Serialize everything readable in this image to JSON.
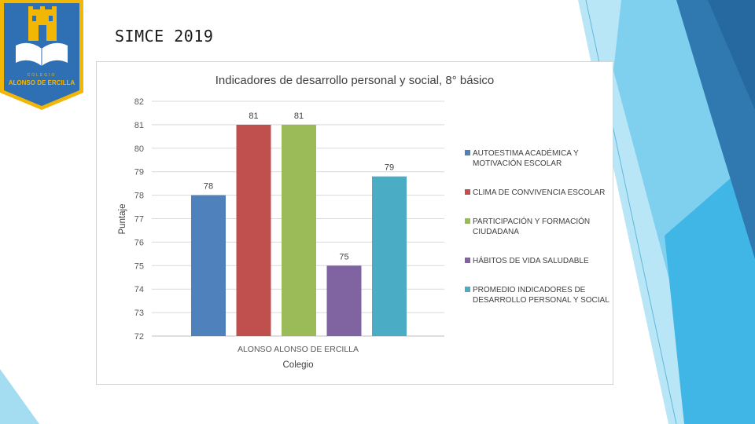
{
  "slide": {
    "title": "SIMCE 2019",
    "logo_text_top": "COLEGIO",
    "logo_text_bottom": "ALONSO DE ERCILLA"
  },
  "colors": {
    "logo_gold": "#f2b705",
    "deco_light": "#7dd3f0",
    "deco_dark": "#2a6fa8"
  },
  "chart_data": {
    "type": "bar",
    "title": "Indicadores de desarrollo personal y social, 8° básico",
    "xlabel": "Colegio",
    "ylabel": "Puntaje",
    "category": "ALONSO ALONSO DE ERCILLA",
    "ylim": [
      72,
      82
    ],
    "yticks": [
      72,
      73,
      74,
      75,
      76,
      77,
      78,
      79,
      80,
      81,
      82
    ],
    "grid": true,
    "legend_position": "right",
    "series": [
      {
        "name": "AUTOESTIMA ACADÉMICA Y MOTIVACIÓN ESCOLAR",
        "value": 78,
        "label": "78",
        "color": "#4f81bd"
      },
      {
        "name": "CLIMA DE CONVIVENCIA ESCOLAR",
        "value": 81,
        "label": "81",
        "color": "#c0504d"
      },
      {
        "name": "PARTICIPACIÓN Y FORMACIÓN CIUDADANA",
        "value": 81,
        "label": "81",
        "color": "#9bbb59"
      },
      {
        "name": "HÁBITOS DE VIDA SALUDABLE",
        "value": 75,
        "label": "75",
        "color": "#8064a2"
      },
      {
        "name": "PROMEDIO INDICADORES DE DESARROLLO PERSONAL Y SOCIAL",
        "value": 78.8,
        "label": "79",
        "color": "#4bacc6"
      }
    ]
  }
}
